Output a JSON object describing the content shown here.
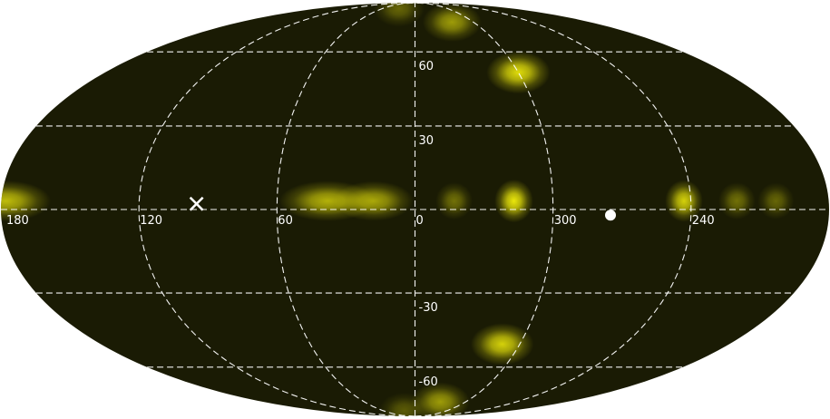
{
  "map": {
    "projection": "Mollweide all-sky",
    "background_color": "#1a1b04",
    "glow_color": "#f2ee0a",
    "grid_color": "#ffffff",
    "grid_style": "dashed",
    "longitude_labels": [
      "180",
      "120",
      "60",
      "0",
      "300",
      "240"
    ],
    "latitude_labels": [
      "60",
      "30",
      "0",
      "-30",
      "-60"
    ],
    "markers": [
      {
        "name": "cross-marker",
        "symbol": "×",
        "lon": 95,
        "lat": 2
      },
      {
        "name": "dot-marker",
        "symbol": "●",
        "lon": 275,
        "lat": -2
      }
    ],
    "sources": [
      {
        "lon": 178,
        "lat": 3,
        "intensity": 0.75,
        "elong": 2.2
      },
      {
        "lon": 38,
        "lat": 3,
        "intensity": 0.7,
        "elong": 2.4
      },
      {
        "lon": 18,
        "lat": 3,
        "intensity": 0.65,
        "elong": 2.0
      },
      {
        "lon": 343,
        "lat": 3,
        "intensity": 0.4,
        "elong": 1.0
      },
      {
        "lon": 317,
        "lat": 3,
        "intensity": 0.95,
        "elong": 0.9
      },
      {
        "lon": 243,
        "lat": 3,
        "intensity": 0.85,
        "elong": 0.9
      },
      {
        "lon": 220,
        "lat": 3,
        "intensity": 0.4,
        "elong": 1.0
      },
      {
        "lon": 203,
        "lat": 3,
        "intensity": 0.35,
        "elong": 1.0
      },
      {
        "lon": 300,
        "lat": 51,
        "intensity": 0.9,
        "elong": 1.5
      },
      {
        "lon": 310,
        "lat": -50,
        "intensity": 0.85,
        "elong": 1.5
      },
      {
        "lon": 322,
        "lat": 75,
        "intensity": 0.6,
        "elong": 1.5
      },
      {
        "lon": 330,
        "lat": -78,
        "intensity": 0.6,
        "elong": 1.5
      },
      {
        "lon": 30,
        "lat": 84,
        "intensity": 0.35,
        "elong": 1.4
      },
      {
        "lon": 20,
        "lat": -84,
        "intensity": 0.3,
        "elong": 1.4
      }
    ]
  }
}
